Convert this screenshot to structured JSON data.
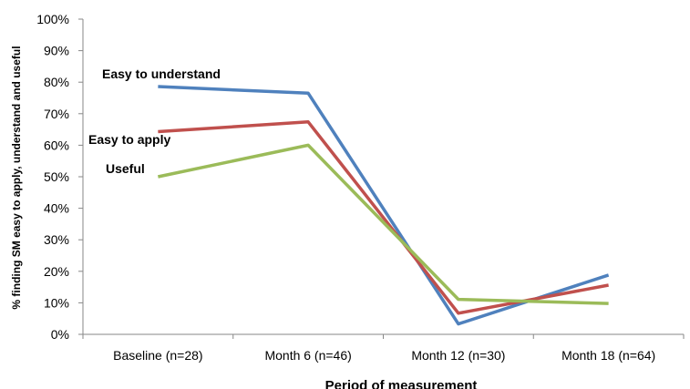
{
  "chart_data": {
    "type": "line",
    "title": "",
    "xlabel": "Period of measurement",
    "ylabel": "% finding SM easy to apply, understand and useful",
    "ylim": [
      0,
      100
    ],
    "ytick_labels": [
      "0%",
      "10%",
      "20%",
      "30%",
      "40%",
      "50%",
      "60%",
      "70%",
      "80%",
      "90%",
      "100%"
    ],
    "categories": [
      "Baseline (n=28)",
      "Month 6 (n=46)",
      "Month 12 (n=30)",
      "Month 18 (n=64)"
    ],
    "series": [
      {
        "name": "Easy to understand",
        "color": "#4F81BD",
        "values": [
          78.6,
          76.5,
          3.3,
          18.8
        ]
      },
      {
        "name": "Easy to apply",
        "color": "#C0504D",
        "values": [
          64.3,
          67.4,
          6.7,
          15.6
        ]
      },
      {
        "name": "Useful",
        "color": "#9BBB59",
        "values": [
          50.0,
          60.0,
          11.1,
          9.8
        ]
      }
    ],
    "grid": false,
    "legend": "inline annotations at left"
  }
}
